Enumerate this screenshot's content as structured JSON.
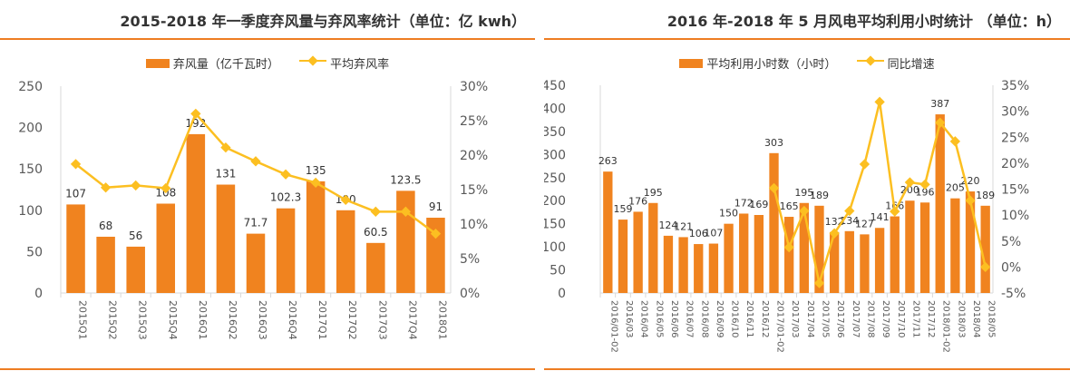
{
  "chart_data": [
    {
      "type": "bar+line",
      "title": "2015-2018 年一季度弃风量与弃风率统计（单位：亿 kwh）",
      "categories": [
        "2015Q1",
        "2015Q2",
        "2015Q3",
        "2015Q4",
        "2016Q1",
        "2016Q2",
        "2016Q3",
        "2016Q4",
        "2017Q1",
        "2017Q2",
        "2017Q3",
        "2017Q4",
        "2018Q1"
      ],
      "series": [
        {
          "name": "弃风量（亿千瓦时）",
          "type": "bar",
          "axis": "left",
          "values": [
            107,
            68,
            56,
            108,
            192,
            131,
            71.7,
            102.3,
            135,
            100,
            60.5,
            123.5,
            91
          ],
          "labels": [
            "107",
            "68",
            "56",
            "108",
            "192",
            "131",
            "71.7",
            "102.3",
            "135",
            "100",
            "60.5",
            "123.5",
            "91"
          ]
        },
        {
          "name": "平均弃风率",
          "type": "line",
          "axis": "right",
          "values": [
            18.7,
            15.3,
            15.6,
            15.2,
            26,
            21.1,
            19.1,
            17.2,
            16,
            13.5,
            11.8,
            11.8,
            8.6
          ]
        }
      ],
      "ylim": [
        0,
        250
      ],
      "yticks": [
        0,
        50,
        100,
        150,
        200,
        250
      ],
      "y2lim": [
        0,
        30
      ],
      "y2ticks": [
        "0%",
        "5%",
        "10%",
        "15%",
        "20%",
        "25%",
        "30%"
      ],
      "grid": false,
      "legend": "top"
    },
    {
      "type": "bar+line",
      "title": "2016 年-2018 年 5 月风电平均利用小时统计 （单位：h）",
      "categories": [
        "2016/01-02",
        "2016/03",
        "2016/04",
        "2016/05",
        "2016/06",
        "2016/07",
        "2016/08",
        "2016/09",
        "2016/10",
        "2016/11",
        "2016/12",
        "2017/01-02",
        "2017/03",
        "2017/04",
        "2017/05",
        "2017/06",
        "2017/07",
        "2017/08",
        "2017/09",
        "2017/10",
        "2017/11",
        "2017/12",
        "2018/01-02",
        "2018/03",
        "2018/04",
        "2018/05"
      ],
      "series": [
        {
          "name": "平均利用小时数（小时）",
          "type": "bar",
          "axis": "left",
          "values": [
            263,
            159,
            176,
            195,
            124,
            121,
            106,
            107,
            150,
            172,
            169,
            303,
            165,
            195,
            189,
            132,
            134,
            127,
            141,
            166,
            200,
            196,
            387,
            205,
            220,
            189
          ],
          "labels": [
            "263",
            "159",
            "176",
            "195",
            "124",
            "121",
            "106",
            "107",
            "150",
            "172",
            "169",
            "303",
            "165",
            "195",
            "189",
            "132",
            "134",
            "127",
            "141",
            "166",
            "200",
            "196",
            "387",
            "205",
            "220",
            "189"
          ]
        },
        {
          "name": "同比增速",
          "type": "line",
          "axis": "right",
          "values": [
            null,
            null,
            null,
            null,
            null,
            null,
            null,
            null,
            null,
            null,
            null,
            15.2,
            3.8,
            10.8,
            -3.1,
            6.5,
            10.8,
            19.8,
            31.8,
            10.7,
            16.3,
            15.9,
            27.8,
            24.2,
            12.8,
            0.0
          ]
        }
      ],
      "ylim": [
        0,
        450
      ],
      "yticks": [
        0,
        50,
        100,
        150,
        200,
        250,
        300,
        350,
        400,
        450
      ],
      "y2lim": [
        -5,
        35
      ],
      "y2ticks": [
        "-5%",
        "0%",
        "5%",
        "10%",
        "15%",
        "20%",
        "25%",
        "30%",
        "35%"
      ],
      "grid": false,
      "legend": "top"
    }
  ],
  "colors": {
    "bar": "#f0831f",
    "line": "#fcbf21",
    "accent": "#ee7d22"
  }
}
